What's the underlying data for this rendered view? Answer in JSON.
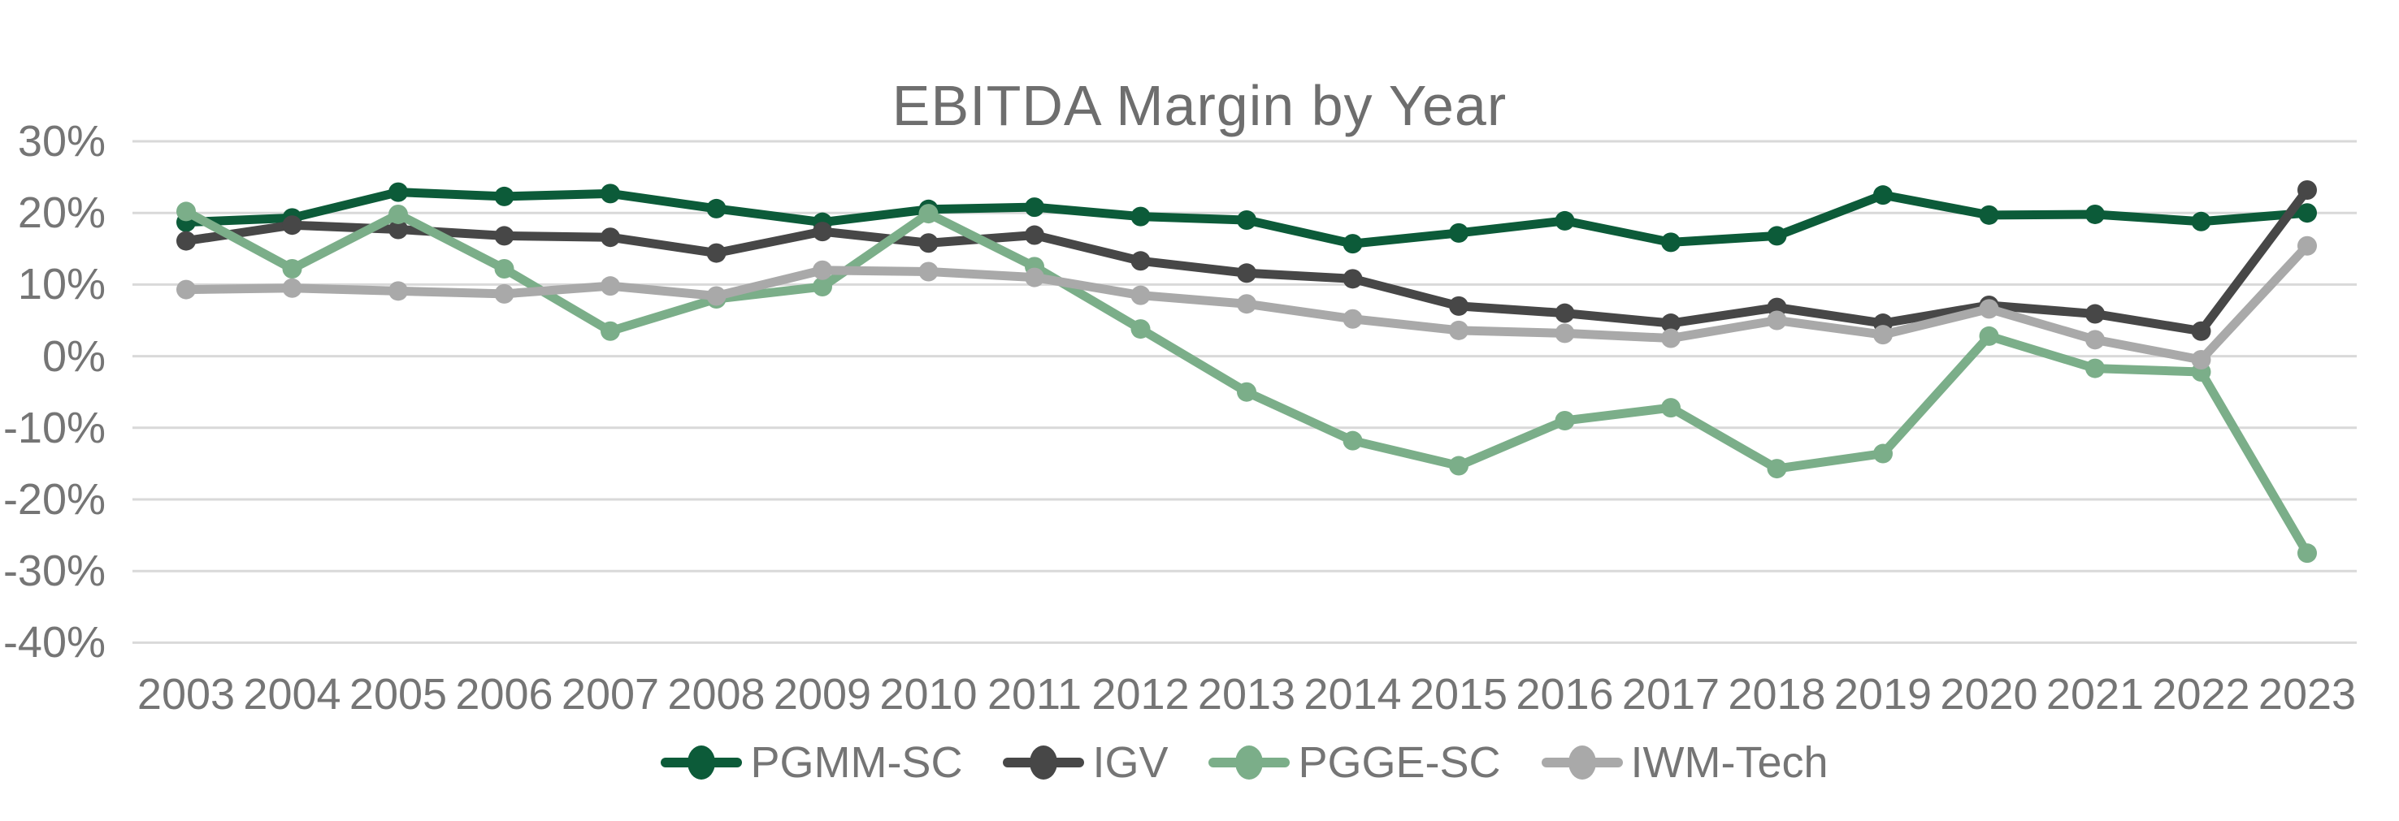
{
  "page": {
    "background": "#FFFFFF"
  },
  "chart_data": {
    "type": "line",
    "title": "EBITDA Margin by Year",
    "xlabel": "",
    "ylabel": "",
    "x": [
      "2003",
      "2004",
      "2005",
      "2006",
      "2007",
      "2008",
      "2009",
      "2010",
      "2011",
      "2012",
      "2013",
      "2014",
      "2015",
      "2016",
      "2017",
      "2018",
      "2019",
      "2020",
      "2021",
      "2022",
      "2023"
    ],
    "yticks": [
      30,
      20,
      10,
      0,
      -10,
      -20,
      -30,
      -40
    ],
    "ytick_labels": [
      "30%",
      "20%",
      "10%",
      "0%",
      "-10%",
      "-20%",
      "-30%",
      "-40%"
    ],
    "ylim": [
      -45,
      33
    ],
    "grid": true,
    "gridline_color": "#D9D9D9",
    "axis_text_color": "#757575",
    "title_color": "#6E6E6E",
    "legend_position": "bottom",
    "series": [
      {
        "name": "PGMM-SC",
        "color": "#0C5B39",
        "values": [
          18.7,
          19.3,
          22.9,
          22.3,
          22.7,
          20.6,
          18.7,
          20.5,
          20.8,
          19.5,
          19.0,
          15.7,
          17.2,
          18.9,
          15.9,
          16.8,
          22.5,
          19.7,
          19.8,
          18.8,
          20.0
        ]
      },
      {
        "name": "IGV",
        "color": "#474747",
        "values": [
          16.1,
          18.3,
          17.7,
          16.8,
          16.6,
          14.4,
          17.4,
          15.8,
          16.9,
          13.3,
          11.6,
          10.8,
          7.0,
          6.0,
          4.6,
          6.8,
          4.6,
          7.1,
          5.9,
          3.5,
          23.2
        ]
      },
      {
        "name": "PGGE-SC",
        "color": "#7BAE89",
        "values": [
          20.2,
          12.2,
          19.8,
          12.2,
          3.5,
          8.0,
          9.7,
          19.9,
          12.5,
          3.8,
          -5.0,
          -11.8,
          -15.3,
          -9.0,
          -7.2,
          -15.7,
          -13.6,
          2.8,
          -1.7,
          -2.2,
          -27.5
        ]
      },
      {
        "name": "IWM-Tech",
        "color": "#A9A9A9",
        "values": [
          9.3,
          9.5,
          9.1,
          8.7,
          9.8,
          8.4,
          12.0,
          11.8,
          11.0,
          8.5,
          7.3,
          5.2,
          3.6,
          3.2,
          2.5,
          5.0,
          3.0,
          6.6,
          2.3,
          -0.5,
          15.4
        ]
      }
    ]
  }
}
